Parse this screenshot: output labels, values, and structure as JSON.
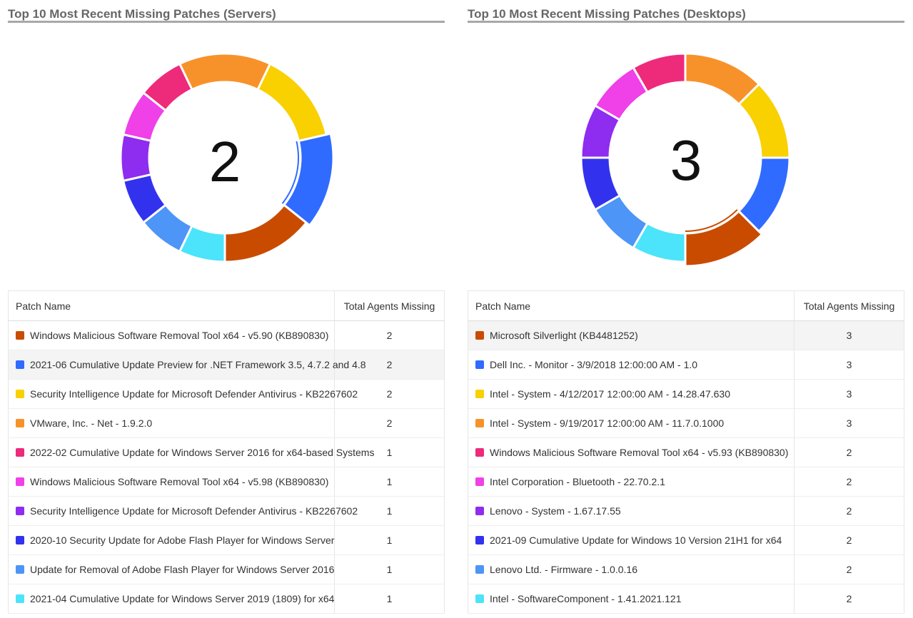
{
  "servers": {
    "title": "Top 10 Most Recent Missing Patches (Servers)",
    "center_value": "2",
    "columns": [
      "Patch Name",
      "Total Agents Missing"
    ],
    "rows": [
      {
        "name": "Windows Malicious Software Removal Tool x64 - v5.90 (KB890830)",
        "count": "2",
        "color": "#c94b00"
      },
      {
        "name": "2021-06 Cumulative Update Preview for .NET Framework 3.5, 4.7.2 and 4.8",
        "count": "2",
        "color": "#2f6bff"
      },
      {
        "name": "Security Intelligence Update for Microsoft Defender Antivirus - KB2267602",
        "count": "2",
        "color": "#f9d000"
      },
      {
        "name": "VMware, Inc. - Net - 1.9.2.0",
        "count": "2",
        "color": "#f7922a"
      },
      {
        "name": "2022-02 Cumulative Update for Windows Server 2016 for x64-based Systems",
        "count": "1",
        "color": "#ee2a7b"
      },
      {
        "name": "Windows Malicious Software Removal Tool x64 - v5.98 (KB890830)",
        "count": "1",
        "color": "#f040e8"
      },
      {
        "name": "Security Intelligence Update for Microsoft Defender Antivirus - KB2267602",
        "count": "1",
        "color": "#8e2cf0"
      },
      {
        "name": "2020-10 Security Update for Adobe Flash Player for Windows Server",
        "count": "1",
        "color": "#3232ee"
      },
      {
        "name": "Update for Removal of Adobe Flash Player for Windows Server 2016",
        "count": "1",
        "color": "#4d95f7"
      },
      {
        "name": "2021-04 Cumulative Update for Windows Server 2019 (1809) for x64",
        "count": "1",
        "color": "#4be4fa"
      }
    ]
  },
  "desktops": {
    "title": "Top 10 Most Recent Missing Patches (Desktops)",
    "center_value": "3",
    "columns": [
      "Patch Name",
      "Total Agents Missing"
    ],
    "rows": [
      {
        "name": "Microsoft Silverlight (KB4481252)",
        "count": "3",
        "color": "#c94b00"
      },
      {
        "name": "Dell Inc. - Monitor - 3/9/2018 12:00:00 AM - 1.0",
        "count": "3",
        "color": "#2f6bff"
      },
      {
        "name": "Intel - System - 4/12/2017 12:00:00 AM - 14.28.47.630",
        "count": "3",
        "color": "#f9d000"
      },
      {
        "name": "Intel - System - 9/19/2017 12:00:00 AM - 11.7.0.1000",
        "count": "3",
        "color": "#f7922a"
      },
      {
        "name": "Windows Malicious Software Removal Tool x64 - v5.93 (KB890830)",
        "count": "2",
        "color": "#ee2a7b"
      },
      {
        "name": "Intel Corporation - Bluetooth - 22.70.2.1",
        "count": "2",
        "color": "#f040e8"
      },
      {
        "name": "Lenovo - System - 1.67.17.55",
        "count": "2",
        "color": "#8e2cf0"
      },
      {
        "name": "2021-09 Cumulative Update for Windows 10 Version 21H1 for x64",
        "count": "2",
        "color": "#3232ee"
      },
      {
        "name": "Lenovo Ltd. - Firmware - 1.0.0.16",
        "count": "2",
        "color": "#4d95f7"
      },
      {
        "name": "Intel - SoftwareComponent - 1.41.2021.121",
        "count": "2",
        "color": "#4be4fa"
      }
    ]
  },
  "chart_data": [
    {
      "type": "pie",
      "title": "Top 10 Most Recent Missing Patches (Servers)",
      "categories": [
        "Windows Malicious Software Removal Tool x64 - v5.90 (KB890830)",
        "2021-06 Cumulative Update Preview for .NET Framework 3.5, 4.7.2 and 4.8",
        "Security Intelligence Update for Microsoft Defender Antivirus - KB2267602",
        "VMware, Inc. - Net - 1.9.2.0",
        "2022-02 Cumulative Update for Windows Server 2016 for x64-based Systems",
        "Windows Malicious Software Removal Tool x64 - v5.98 (KB890830)",
        "Security Intelligence Update for Microsoft Defender Antivirus - KB2267602",
        "2020-10 Security Update for Adobe Flash Player for Windows Server",
        "Update for Removal of Adobe Flash Player for Windows Server 2016",
        "2021-04 Cumulative Update for Windows Server 2019 (1809) for x64"
      ],
      "values": [
        2,
        2,
        2,
        2,
        1,
        1,
        1,
        1,
        1,
        1
      ],
      "center_label": "2"
    },
    {
      "type": "pie",
      "title": "Top 10 Most Recent Missing Patches (Desktops)",
      "categories": [
        "Microsoft Silverlight (KB4481252)",
        "Dell Inc. - Monitor - 3/9/2018 12:00:00 AM - 1.0",
        "Intel - System - 4/12/2017 12:00:00 AM - 14.28.47.630",
        "Intel - System - 9/19/2017 12:00:00 AM - 11.7.0.1000",
        "Windows Malicious Software Removal Tool x64 - v5.93 (KB890830)",
        "Intel Corporation - Bluetooth - 22.70.2.1",
        "Lenovo - System - 1.67.17.55",
        "2021-09 Cumulative Update for Windows 10 Version 21H1 for x64",
        "Lenovo Ltd. - Firmware - 1.0.0.16",
        "Intel - SoftwareComponent - 1.41.2021.121"
      ],
      "values": [
        3,
        3,
        3,
        3,
        2,
        2,
        2,
        2,
        2,
        2
      ],
      "center_label": "3"
    }
  ]
}
